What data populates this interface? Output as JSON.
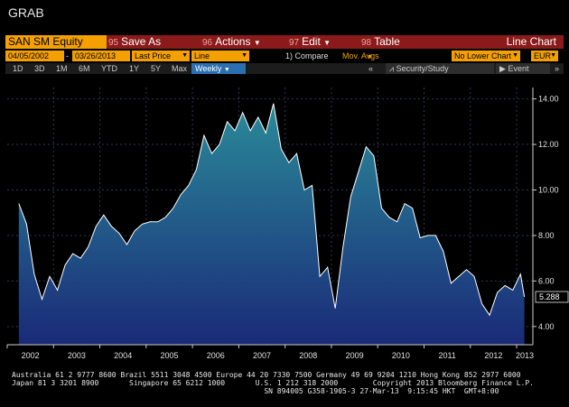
{
  "window": {
    "title": "GRAB"
  },
  "menu": {
    "ticker": "SAN SM Equity",
    "items": [
      {
        "num": "95",
        "label": "Save As"
      },
      {
        "num": "96",
        "label": "Actions"
      },
      {
        "num": "97",
        "label": "Edit"
      },
      {
        "num": "98",
        "label": "Table"
      }
    ],
    "view_title": "Line Chart"
  },
  "params": {
    "start_date": "04/05/2002",
    "end_date": "03/26/2013",
    "field": "Last Price",
    "style": "Line",
    "compare": "1) Compare",
    "compare_field": "Mov. Avgs",
    "lower_chart": "No Lower Chart",
    "currency": "EUR"
  },
  "periods": [
    "1D",
    "3D",
    "1M",
    "6M",
    "YTD",
    "1Y",
    "5Y",
    "Max"
  ],
  "frequency": "Weekly",
  "tools": {
    "security_study": "Security/Study",
    "event": "Event"
  },
  "accent": "#f4a000",
  "chart_data": {
    "type": "area",
    "x": [
      "2002-04",
      "2002-06",
      "2002-08",
      "2002-10",
      "2002-12",
      "2003-02",
      "2003-04",
      "2003-06",
      "2003-08",
      "2003-10",
      "2003-12",
      "2004-02",
      "2004-04",
      "2004-06",
      "2004-08",
      "2004-10",
      "2004-12",
      "2005-02",
      "2005-04",
      "2005-06",
      "2005-08",
      "2005-10",
      "2005-12",
      "2006-02",
      "2006-04",
      "2006-06",
      "2006-08",
      "2006-10",
      "2006-12",
      "2007-02",
      "2007-04",
      "2007-06",
      "2007-08",
      "2007-10",
      "2007-12",
      "2008-02",
      "2008-04",
      "2008-06",
      "2008-08",
      "2008-10",
      "2008-12",
      "2009-02",
      "2009-04",
      "2009-06",
      "2009-08",
      "2009-10",
      "2009-12",
      "2010-02",
      "2010-04",
      "2010-06",
      "2010-08",
      "2010-10",
      "2010-12",
      "2011-02",
      "2011-04",
      "2011-06",
      "2011-08",
      "2011-10",
      "2011-12",
      "2012-02",
      "2012-04",
      "2012-06",
      "2012-08",
      "2012-10",
      "2012-12",
      "2013-02",
      "2013-03"
    ],
    "values": [
      9.4,
      8.5,
      6.3,
      5.2,
      6.2,
      5.6,
      6.7,
      7.2,
      7.0,
      7.5,
      8.4,
      8.9,
      8.4,
      8.1,
      7.6,
      8.2,
      8.5,
      8.6,
      8.6,
      8.8,
      9.2,
      9.8,
      10.2,
      10.9,
      12.4,
      11.6,
      12.0,
      13.0,
      12.6,
      13.4,
      12.6,
      13.2,
      12.5,
      13.8,
      11.8,
      11.2,
      11.6,
      10.0,
      10.2,
      6.2,
      6.6,
      4.8,
      7.5,
      9.7,
      10.8,
      11.9,
      11.5,
      9.2,
      8.8,
      8.6,
      9.4,
      9.2,
      7.9,
      8.0,
      8.0,
      7.3,
      5.9,
      6.2,
      6.5,
      6.2,
      5.0,
      4.5,
      5.5,
      5.8,
      5.6,
      6.3,
      5.3
    ],
    "last_label": "5.288",
    "ylim": [
      3.2,
      14.5
    ],
    "yticks": [
      "4.00",
      "6.00",
      "8.00",
      "10.00",
      "12.00",
      "14.00"
    ],
    "xticks": [
      "2002",
      "2003",
      "2004",
      "2005",
      "2006",
      "2007",
      "2008",
      "2009",
      "2010",
      "2011",
      "2012",
      "2013"
    ],
    "title": "",
    "xlabel": "",
    "ylabel": "",
    "grid": true,
    "line_color": "#ffffff",
    "fill_top": "#2a8a99",
    "fill_bottom": "#1a2a78"
  },
  "footer": {
    "line1": "Australia 61 2 9777 8600 Brazil 5511 3048 4500 Europe 44 20 7330 7500 Germany 49 69 9204 1210 Hong Kong 852 2977 6000",
    "line2": "Japan 81 3 3201 8900       Singapore 65 6212 1000       U.S. 1 212 318 2000        Copyright 2013 Bloomberg Finance L.P.",
    "line3": "                                                          SN 894005 G358-1905-3 27-Mar-13  9:15:45 HKT  GMT+8:00"
  }
}
